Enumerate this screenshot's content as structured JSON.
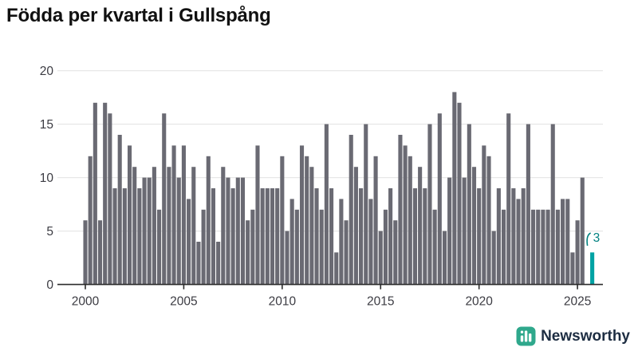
{
  "title": "Födda per kvartal i Gullspång",
  "footer": {
    "brand": "Newsworthy"
  },
  "chart_data": {
    "type": "bar",
    "x_unit": "quarter",
    "x_start": "2000-Q1",
    "x_end": "2025-Q4",
    "values": [
      6,
      12,
      17,
      6,
      17,
      16,
      9,
      14,
      9,
      13,
      11,
      9,
      10,
      10,
      11,
      7,
      16,
      11,
      13,
      10,
      13,
      8,
      11,
      4,
      7,
      12,
      9,
      4,
      11,
      10,
      9,
      10,
      10,
      6,
      7,
      13,
      9,
      9,
      9,
      9,
      12,
      5,
      8,
      7,
      13,
      12,
      11,
      9,
      7,
      15,
      9,
      3,
      8,
      6,
      14,
      11,
      9,
      15,
      8,
      12,
      5,
      7,
      9,
      6,
      14,
      13,
      12,
      9,
      11,
      9,
      15,
      7,
      16,
      5,
      10,
      18,
      17,
      10,
      15,
      11,
      9,
      13,
      12,
      5,
      9,
      7,
      16,
      9,
      8,
      9,
      15,
      7,
      7,
      7,
      7,
      15,
      7,
      8,
      8,
      3,
      6,
      10,
      0,
      3
    ],
    "highlight_last": {
      "quarter": "2025-Q4",
      "value_label": "3"
    },
    "y_ticks": [
      0,
      5,
      10,
      15,
      20
    ],
    "x_tick_years": [
      2000,
      2005,
      2010,
      2015,
      2020,
      2025
    ],
    "ylim": [
      0,
      20
    ],
    "grid": true,
    "colors": {
      "bar": "#6a6a73",
      "highlight": "#00a3a4",
      "annotation": "#00807f",
      "grid": "#e7e7e7",
      "axis_line": "#2b2b2b",
      "axis_text": "#3b3b42",
      "logo_icon": "#2fa88c",
      "logo_text": "#1d2d42"
    }
  }
}
